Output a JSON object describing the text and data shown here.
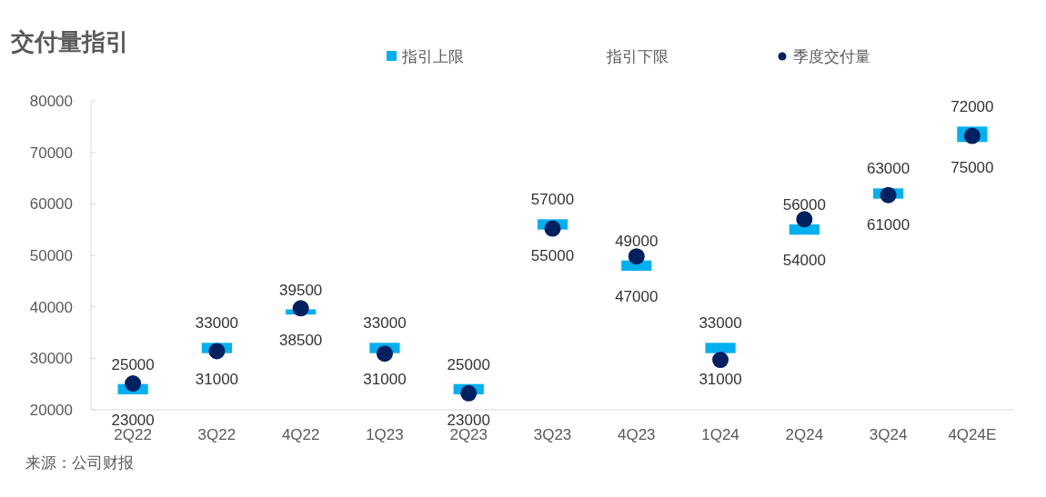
{
  "chart_data": {
    "type": "bar",
    "title": "交付量指引",
    "categories": [
      "2Q22",
      "3Q22",
      "4Q22",
      "1Q23",
      "2Q23",
      "3Q23",
      "4Q23",
      "1Q24",
      "2Q24",
      "3Q24",
      "4Q24E"
    ],
    "ylim": [
      20000,
      80000
    ],
    "yticks": [
      20000,
      30000,
      40000,
      50000,
      60000,
      70000,
      80000
    ],
    "grid": false,
    "legend": "top",
    "series": [
      {
        "name": "指引上限",
        "color": "#00b0f0",
        "base": [
          23000,
          31000,
          38500,
          31000,
          23000,
          55000,
          47000,
          31000,
          54000,
          61000,
          72000
        ],
        "values": [
          2000,
          2000,
          1000,
          2000,
          2000,
          2000,
          2000,
          2000,
          2000,
          2000,
          3000
        ]
      },
      {
        "name": "指引下限",
        "values": [
          null,
          null,
          null,
          null,
          null,
          null,
          null,
          null,
          null,
          null,
          null
        ]
      },
      {
        "name": "季度交付量",
        "type": "scatter",
        "marker": "circle",
        "color": "#002060",
        "values": [
          25100,
          31400,
          39700,
          30900,
          23200,
          55200,
          49800,
          29700,
          57000,
          61700,
          73200
        ]
      }
    ],
    "annotations": [
      {
        "text": "25000",
        "x": "2Q22",
        "y": 25000
      },
      {
        "text": "23000",
        "x": "2Q22",
        "y": 23000
      },
      {
        "text": "33000",
        "x": "3Q22",
        "y": 33000
      },
      {
        "text": "31000",
        "x": "3Q22",
        "y": 31000
      },
      {
        "text": "39500",
        "x": "4Q22",
        "y": 39500
      },
      {
        "text": "38500",
        "x": "4Q22",
        "y": 38500
      },
      {
        "text": "33000",
        "x": "1Q23",
        "y": 33000
      },
      {
        "text": "31000",
        "x": "1Q23",
        "y": 31000
      },
      {
        "text": "25000",
        "x": "2Q23",
        "y": 25000
      },
      {
        "text": "23000",
        "x": "2Q23",
        "y": 23000
      },
      {
        "text": "57000",
        "x": "3Q23",
        "y": 57000
      },
      {
        "text": "55000",
        "x": "3Q23",
        "y": 55000
      },
      {
        "text": "49000",
        "x": "4Q23",
        "y": 49000
      },
      {
        "text": "47000",
        "x": "4Q23",
        "y": 47000
      },
      {
        "text": "33000",
        "x": "1Q24",
        "y": 33000
      },
      {
        "text": "31000",
        "x": "1Q24",
        "y": 31000
      },
      {
        "text": "56000",
        "x": "2Q24",
        "y": 56000
      },
      {
        "text": "54000",
        "x": "2Q24",
        "y": 54000
      },
      {
        "text": "63000",
        "x": "3Q24",
        "y": 63000
      },
      {
        "text": "61000",
        "x": "3Q24",
        "y": 61000
      },
      {
        "text": "72000",
        "x": "4Q24E",
        "y": 72000
      },
      {
        "text": "75000",
        "x": "4Q24E",
        "y": 75000
      },
      "来源：公司财报"
    ]
  }
}
